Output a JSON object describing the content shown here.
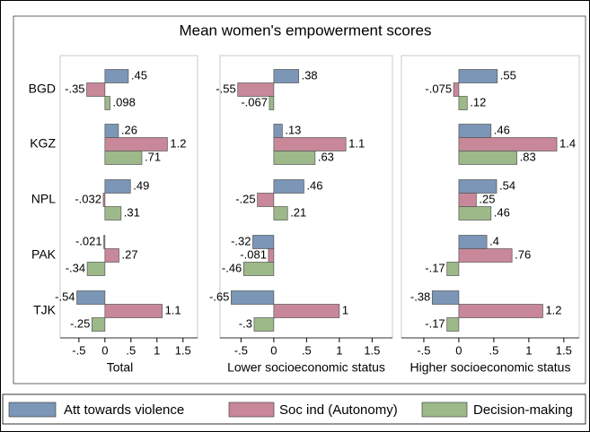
{
  "chart_data": {
    "type": "bar",
    "orientation": "horizontal",
    "title": "Mean women's empowerment scores",
    "categories": [
      "BGD",
      "KGZ",
      "NPL",
      "PAK",
      "TJK"
    ],
    "series": [
      {
        "name": "Att towards violence",
        "color": "#7b96b6"
      },
      {
        "name": "Soc ind (Autonomy)",
        "color": "#c8889a"
      },
      {
        "name": "Decision-making",
        "color": "#9db98a"
      }
    ],
    "panels": [
      {
        "xlabel": "Total",
        "xlim": [
          -0.86,
          1.78
        ],
        "xticks": [
          {
            "value": -0.5,
            "label": "-.5"
          },
          0,
          {
            "value": 0.5,
            "label": ".5"
          },
          1,
          1.5
        ],
        "series": [
          {
            "values": [
              0.45,
              0.26,
              0.49,
              -0.021,
              -0.54
            ],
            "value_labels": [
              ".45",
              ".26",
              ".49",
              "-.021",
              "-.54"
            ]
          },
          {
            "values": [
              -0.35,
              1.2,
              -0.032,
              0.27,
              1.1
            ],
            "value_labels": [
              "-.35",
              "1.2",
              "-.032",
              ".27",
              "1.1"
            ]
          },
          {
            "values": [
              0.098,
              0.71,
              0.31,
              -0.34,
              -0.25
            ],
            "value_labels": [
              ".098",
              ".71",
              ".31",
              "-.34",
              "-.25"
            ]
          }
        ]
      },
      {
        "xlabel": "Lower socioeconomic status",
        "xlim": [
          -0.82,
          1.81
        ],
        "xticks": [
          {
            "value": -0.5,
            "label": "-.5"
          },
          0,
          {
            "value": 0.5,
            "label": ".5"
          },
          1,
          1.5
        ],
        "series": [
          {
            "values": [
              0.38,
              0.13,
              0.46,
              -0.32,
              -0.65
            ],
            "value_labels": [
              ".38",
              ".13",
              ".46",
              "-.32",
              "-.65"
            ]
          },
          {
            "values": [
              -0.55,
              1.1,
              -0.25,
              -0.081,
              1
            ],
            "value_labels": [
              "-.55",
              "1.1",
              "-.25",
              "-.081",
              "1"
            ]
          },
          {
            "values": [
              -0.067,
              0.63,
              0.21,
              -0.46,
              -0.3
            ],
            "value_labels": [
              "-.067",
              ".63",
              ".21",
              "-.46",
              "-.3"
            ]
          }
        ]
      },
      {
        "xlabel": "Higher socioeconomic status",
        "xlim": [
          -0.82,
          1.72
        ],
        "xticks": [
          {
            "value": -0.5,
            "label": "-.5"
          },
          0,
          {
            "value": 0.5,
            "label": ".5"
          },
          1,
          1.5
        ],
        "series": [
          {
            "values": [
              0.55,
              0.46,
              0.54,
              0.4,
              -0.38
            ],
            "value_labels": [
              ".55",
              ".46",
              ".54",
              ".4",
              "-.38"
            ]
          },
          {
            "values": [
              -0.075,
              1.4,
              0.25,
              0.76,
              1.2
            ],
            "value_labels": [
              "-.075",
              "1.4",
              ".25",
              ".76",
              "1.2"
            ]
          },
          {
            "values": [
              0.12,
              0.83,
              0.46,
              -0.17,
              -0.17
            ],
            "value_labels": [
              ".12",
              ".83",
              ".46",
              "-.17",
              "-.17"
            ]
          }
        ]
      }
    ]
  }
}
